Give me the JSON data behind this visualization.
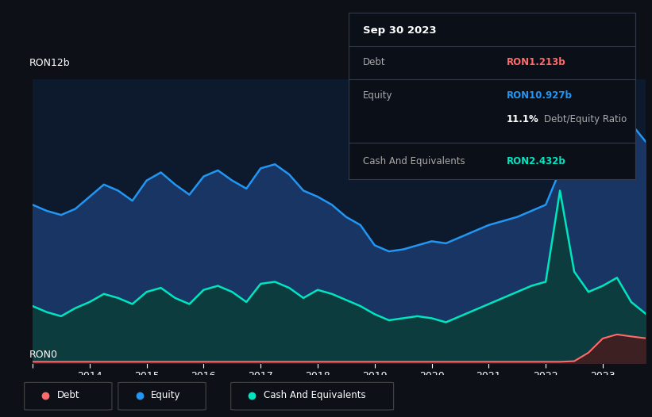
{
  "bg_color": "#0d1117",
  "plot_bg_color": "#0d1a2e",
  "grid_color": "#1e2d42",
  "title_label": "RON12b",
  "y_bottom_label": "RON0",
  "ylim": [
    0,
    14
  ],
  "equity_color": "#2196f3",
  "cash_color": "#00e5c0",
  "debt_color": "#ff6b6b",
  "equity_fill": "#1a3a6e",
  "cash_fill": "#0d3d3d",
  "debt_fill": "#4a1a1a",
  "x_years": [
    2013,
    2013.25,
    2013.5,
    2013.75,
    2014,
    2014.25,
    2014.5,
    2014.75,
    2015,
    2015.25,
    2015.5,
    2015.75,
    2016,
    2016.25,
    2016.5,
    2016.75,
    2017,
    2017.25,
    2017.5,
    2017.75,
    2018,
    2018.25,
    2018.5,
    2018.75,
    2019,
    2019.25,
    2019.5,
    2019.75,
    2020,
    2020.25,
    2020.5,
    2020.75,
    2021,
    2021.25,
    2021.5,
    2021.75,
    2022,
    2022.25,
    2022.5,
    2022.75,
    2023,
    2023.25,
    2023.5,
    2023.75
  ],
  "equity_y": [
    7.8,
    7.5,
    7.3,
    7.6,
    8.2,
    8.8,
    8.5,
    8.0,
    9.0,
    9.4,
    8.8,
    8.3,
    9.2,
    9.5,
    9.0,
    8.6,
    9.6,
    9.8,
    9.3,
    8.5,
    8.2,
    7.8,
    7.2,
    6.8,
    5.8,
    5.5,
    5.6,
    5.8,
    6.0,
    5.9,
    6.2,
    6.5,
    6.8,
    7.0,
    7.2,
    7.5,
    7.8,
    9.5,
    9.8,
    10.2,
    11.8,
    12.5,
    11.8,
    10.93
  ],
  "cash_y": [
    2.8,
    2.5,
    2.3,
    2.7,
    3.0,
    3.4,
    3.2,
    2.9,
    3.5,
    3.7,
    3.2,
    2.9,
    3.6,
    3.8,
    3.5,
    3.0,
    3.9,
    4.0,
    3.7,
    3.2,
    3.6,
    3.4,
    3.1,
    2.8,
    2.4,
    2.1,
    2.2,
    2.3,
    2.2,
    2.0,
    2.3,
    2.6,
    2.9,
    3.2,
    3.5,
    3.8,
    4.0,
    8.5,
    4.5,
    3.5,
    3.8,
    4.2,
    3.0,
    2.43
  ],
  "debt_y": [
    0.05,
    0.05,
    0.05,
    0.05,
    0.05,
    0.05,
    0.05,
    0.05,
    0.05,
    0.05,
    0.05,
    0.05,
    0.05,
    0.05,
    0.05,
    0.05,
    0.05,
    0.05,
    0.05,
    0.05,
    0.05,
    0.05,
    0.05,
    0.05,
    0.05,
    0.05,
    0.05,
    0.05,
    0.05,
    0.05,
    0.05,
    0.05,
    0.05,
    0.05,
    0.05,
    0.05,
    0.05,
    0.05,
    0.08,
    0.5,
    1.2,
    1.4,
    1.3,
    1.213
  ],
  "tooltip_date": "Sep 30 2023",
  "tooltip_debt_label": "Debt",
  "tooltip_debt_value": "RON1.213b",
  "tooltip_equity_label": "Equity",
  "tooltip_equity_value": "RON10.927b",
  "tooltip_ratio_text": "11.1%",
  "tooltip_ratio_label": "Debt/Equity Ratio",
  "tooltip_cash_label": "Cash And Equivalents",
  "tooltip_cash_value": "RON2.432b",
  "legend_labels": [
    "Debt",
    "Equity",
    "Cash And Equivalents"
  ],
  "xticks": [
    2013,
    2014,
    2015,
    2016,
    2017,
    2018,
    2019,
    2020,
    2021,
    2022,
    2023
  ],
  "xtick_labels": [
    "",
    "2014",
    "2015",
    "2016",
    "2017",
    "2018",
    "2019",
    "2020",
    "2021",
    "2022",
    "2023"
  ]
}
